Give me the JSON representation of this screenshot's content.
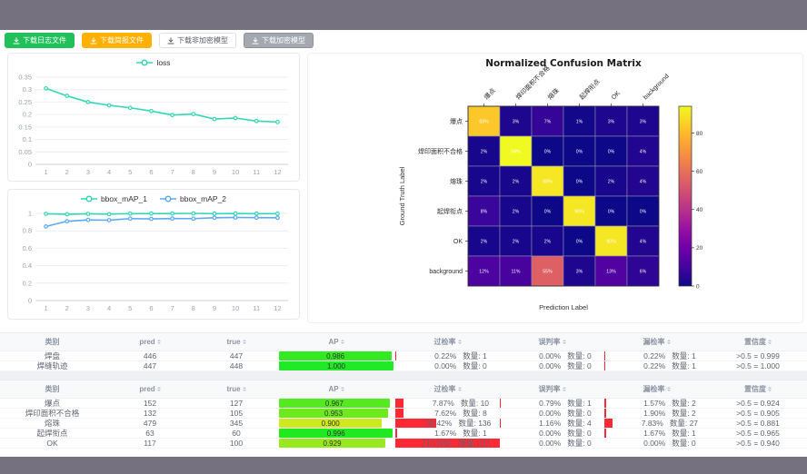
{
  "colors": {
    "frame": "#76717e",
    "accent_teal": "#35d6b5",
    "accent_blue": "#5ca9f5",
    "bar_red": "#ff2936",
    "btn_green": "#20c05a",
    "btn_orange": "#ffb000",
    "btn_gray": "#a4a8af"
  },
  "toolbar": {
    "buttons": [
      {
        "label": "下载日志文件",
        "style": "green"
      },
      {
        "label": "下载简报文件",
        "style": "orange"
      },
      {
        "label": "下载非加密模型",
        "style": "plain"
      },
      {
        "label": "下载加密模型",
        "style": "gray"
      }
    ]
  },
  "chart_data": [
    {
      "type": "line",
      "title": "loss",
      "x": [
        1,
        2,
        3,
        4,
        5,
        6,
        7,
        8,
        9,
        10,
        11,
        12
      ],
      "series": [
        {
          "name": "loss",
          "color": "#35d6b5",
          "values": [
            0.305,
            0.275,
            0.25,
            0.237,
            0.227,
            0.214,
            0.198,
            0.202,
            0.182,
            0.186,
            0.174,
            0.17
          ]
        }
      ],
      "ylim": [
        0,
        0.35
      ],
      "yticks": [
        0,
        0.05,
        0.1,
        0.15,
        0.2,
        0.25,
        0.3,
        0.35
      ],
      "grid": true,
      "legend_position": "top"
    },
    {
      "type": "line",
      "title": "bbox_mAP",
      "x": [
        1,
        2,
        3,
        4,
        5,
        6,
        7,
        8,
        9,
        10,
        11,
        12
      ],
      "series": [
        {
          "name": "bbox_mAP_1",
          "color": "#35d6b5",
          "values": [
            0.995,
            0.99,
            0.995,
            0.992,
            0.997,
            0.998,
            0.998,
            1.0,
            0.997,
            0.998,
            0.997,
            0.997
          ]
        },
        {
          "name": "bbox_mAP_2",
          "color": "#5ca9f5",
          "values": [
            0.85,
            0.91,
            0.925,
            0.922,
            0.94,
            0.937,
            0.941,
            0.94,
            0.95,
            0.953,
            0.951,
            0.95
          ]
        }
      ],
      "ylim": [
        0,
        1
      ],
      "yticks": [
        0,
        0.2,
        0.4,
        0.6,
        0.8,
        1
      ],
      "grid": true,
      "legend_position": "top"
    },
    {
      "type": "heatmap",
      "title": "Normalized Confusion Matrix",
      "xlabel": "Prediction Label",
      "ylabel": "Ground Truth Label",
      "labels": [
        "爆点",
        "焊印面积不合格",
        "熔珠",
        "起焊衔点",
        "OK",
        "background"
      ],
      "matrix": [
        [
          83,
          3,
          7,
          1,
          3,
          3
        ],
        [
          2,
          94,
          0,
          0,
          0,
          4
        ],
        [
          2,
          2,
          90,
          0,
          2,
          4
        ],
        [
          8,
          2,
          0,
          90,
          0,
          0
        ],
        [
          2,
          2,
          2,
          0,
          90,
          4
        ],
        [
          12,
          11,
          55,
          3,
          13,
          6
        ]
      ],
      "unit": "%",
      "vmax": 94,
      "colormap": "plasma",
      "colorbar_ticks": [
        0,
        20,
        40,
        60,
        80
      ]
    }
  ],
  "tables": {
    "headers": [
      "类别",
      "pred",
      "true",
      "AP",
      "过检率",
      "误判率",
      "漏检率",
      "置信度"
    ],
    "sortable": [
      false,
      true,
      true,
      true,
      true,
      true,
      true,
      true
    ],
    "count_label": "数量:",
    "groups": [
      {
        "rows": [
          {
            "label": "焊盘",
            "pred": "446",
            "true": "447",
            "ap": 0.986,
            "rates": [
              {
                "pct": "0.22%",
                "count": "1"
              },
              {
                "pct": "0.00%",
                "count": "0"
              },
              {
                "pct": "0.22%",
                "count": "1"
              }
            ],
            "conf": ">0.5 = 0.999"
          },
          {
            "label": "焊缝轨迹",
            "pred": "447",
            "true": "448",
            "ap": 1.0,
            "rates": [
              {
                "pct": "0.00%",
                "count": "0"
              },
              {
                "pct": "0.00%",
                "count": "0"
              },
              {
                "pct": "0.22%",
                "count": "1"
              }
            ],
            "conf": ">0.5 = 1.000"
          }
        ]
      },
      {
        "rows": [
          {
            "label": "爆点",
            "pred": "152",
            "true": "127",
            "ap": 0.967,
            "rates": [
              {
                "pct": "7.87%",
                "count": "10"
              },
              {
                "pct": "0.79%",
                "count": "1"
              },
              {
                "pct": "1.57%",
                "count": "2"
              }
            ],
            "conf": ">0.5 = 0.924"
          },
          {
            "label": "焊印面积不合格",
            "pred": "132",
            "true": "105",
            "ap": 0.953,
            "rates": [
              {
                "pct": "7.62%",
                "count": "8"
              },
              {
                "pct": "0.00%",
                "count": "0"
              },
              {
                "pct": "1.90%",
                "count": "2"
              }
            ],
            "conf": ">0.5 = 0.905"
          },
          {
            "label": "熔珠",
            "pred": "479",
            "true": "345",
            "ap": 0.9,
            "rates": [
              {
                "pct": "39.42%",
                "count": "136"
              },
              {
                "pct": "1.16%",
                "count": "4"
              },
              {
                "pct": "7.83%",
                "count": "27"
              }
            ],
            "conf": ">0.5 = 0.881"
          },
          {
            "label": "起焊衔点",
            "pred": "63",
            "true": "60",
            "ap": 0.996,
            "rates": [
              {
                "pct": "1.67%",
                "count": "1"
              },
              {
                "pct": "0.00%",
                "count": "0"
              },
              {
                "pct": "1.67%",
                "count": "1"
              }
            ],
            "conf": ">0.5 = 0.965"
          },
          {
            "label": "OK",
            "pred": "117",
            "true": "100",
            "ap": 0.929,
            "rates": [
              {
                "pct": "117.00%",
                "count": "117"
              },
              {
                "pct": "0.00%",
                "count": "0"
              },
              {
                "pct": "0.00%",
                "count": "0"
              }
            ],
            "conf": ">0.5 = 0.940"
          }
        ]
      }
    ]
  }
}
